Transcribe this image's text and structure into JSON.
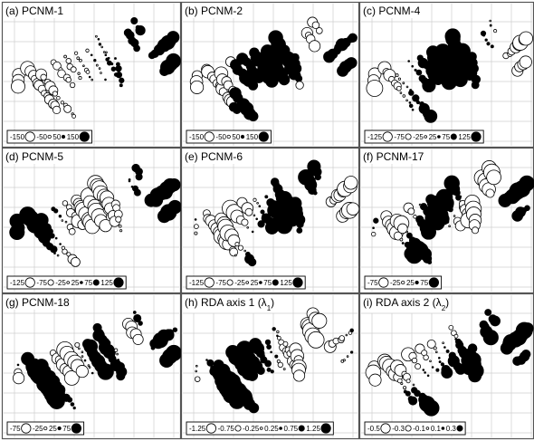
{
  "chart_data": [
    {
      "type": "scatter",
      "title": "(a) PCNM-1",
      "legend": [
        {
          "label": "-150",
          "sign": "neg",
          "mag": 1
        },
        {
          "label": "-50",
          "sign": "neg",
          "mag": 0.33
        },
        {
          "label": "50",
          "sign": "pos",
          "mag": 0.33
        },
        {
          "label": "150",
          "sign": "pos",
          "mag": 1
        }
      ],
      "grid": true,
      "legend_placement": "bottom-left"
    },
    {
      "type": "scatter",
      "title": "(b) PCNM-2",
      "legend": [
        {
          "label": "-150",
          "sign": "neg",
          "mag": 1
        },
        {
          "label": "-50",
          "sign": "neg",
          "mag": 0.33
        },
        {
          "label": "50",
          "sign": "pos",
          "mag": 0.33
        },
        {
          "label": "150",
          "sign": "pos",
          "mag": 1
        }
      ],
      "grid": true,
      "legend_placement": "bottom-left"
    },
    {
      "type": "scatter",
      "title": "(c) PCNM-4",
      "legend": [
        {
          "label": "-125",
          "sign": "neg",
          "mag": 1
        },
        {
          "label": "-75",
          "sign": "neg",
          "mag": 0.6
        },
        {
          "label": "-25",
          "sign": "neg",
          "mag": 0.2
        },
        {
          "label": "25",
          "sign": "pos",
          "mag": 0.2
        },
        {
          "label": "75",
          "sign": "pos",
          "mag": 0.6
        },
        {
          "label": "125",
          "sign": "pos",
          "mag": 1
        }
      ],
      "grid": true,
      "legend_placement": "bottom-left"
    },
    {
      "type": "scatter",
      "title": "(d) PCNM-5",
      "legend": [
        {
          "label": "-125",
          "sign": "neg",
          "mag": 1
        },
        {
          "label": "-75",
          "sign": "neg",
          "mag": 0.6
        },
        {
          "label": "-25",
          "sign": "neg",
          "mag": 0.2
        },
        {
          "label": "25",
          "sign": "pos",
          "mag": 0.2
        },
        {
          "label": "75",
          "sign": "pos",
          "mag": 0.6
        },
        {
          "label": "125",
          "sign": "pos",
          "mag": 1
        }
      ],
      "grid": true,
      "legend_placement": "bottom-left"
    },
    {
      "type": "scatter",
      "title": "(e) PCNM-6",
      "legend": [
        {
          "label": "-125",
          "sign": "neg",
          "mag": 1
        },
        {
          "label": "-75",
          "sign": "neg",
          "mag": 0.6
        },
        {
          "label": "-25",
          "sign": "neg",
          "mag": 0.2
        },
        {
          "label": "25",
          "sign": "pos",
          "mag": 0.2
        },
        {
          "label": "75",
          "sign": "pos",
          "mag": 0.6
        },
        {
          "label": "125",
          "sign": "pos",
          "mag": 1
        }
      ],
      "grid": true,
      "legend_placement": "bottom-left"
    },
    {
      "type": "scatter",
      "title": "(f) PCNM-17",
      "legend": [
        {
          "label": "-75",
          "sign": "neg",
          "mag": 1
        },
        {
          "label": "-25",
          "sign": "neg",
          "mag": 0.33
        },
        {
          "label": "25",
          "sign": "pos",
          "mag": 0.33
        },
        {
          "label": "75",
          "sign": "pos",
          "mag": 1
        }
      ],
      "grid": true,
      "legend_placement": "bottom-left"
    },
    {
      "type": "scatter",
      "title": "(g) PCNM-18",
      "legend": [
        {
          "label": "-75",
          "sign": "neg",
          "mag": 1
        },
        {
          "label": "-25",
          "sign": "neg",
          "mag": 0.33
        },
        {
          "label": "25",
          "sign": "pos",
          "mag": 0.33
        },
        {
          "label": "75",
          "sign": "pos",
          "mag": 1
        }
      ],
      "grid": true,
      "legend_placement": "bottom-left"
    },
    {
      "type": "scatter",
      "title": "(h) RDA axis 1 (λ",
      "title_sub": "1",
      "title_end": ")",
      "legend": [
        {
          "label": "-1.25",
          "sign": "neg",
          "mag": 1
        },
        {
          "label": "-0.75",
          "sign": "neg",
          "mag": 0.6
        },
        {
          "label": "-0.25",
          "sign": "neg",
          "mag": 0.2
        },
        {
          "label": "0.25",
          "sign": "pos",
          "mag": 0.2
        },
        {
          "label": "0.75",
          "sign": "pos",
          "mag": 0.6
        },
        {
          "label": "1.25",
          "sign": "pos",
          "mag": 1
        }
      ],
      "grid": true,
      "legend_placement": "bottom-left"
    },
    {
      "type": "scatter",
      "title": "(i) RDA axis 2 (λ",
      "title_sub": "2",
      "title_end": ")",
      "legend": [
        {
          "label": "-0.5",
          "sign": "neg",
          "mag": 1
        },
        {
          "label": "-0.3",
          "sign": "neg",
          "mag": 0.6
        },
        {
          "label": "-0.1",
          "sign": "neg",
          "mag": 0.2
        },
        {
          "label": "0.1",
          "sign": "pos",
          "mag": 0.2
        },
        {
          "label": "0.3",
          "sign": "pos",
          "mag": 0.6
        }
      ],
      "grid": true,
      "legend_placement": "bottom-left"
    }
  ]
}
